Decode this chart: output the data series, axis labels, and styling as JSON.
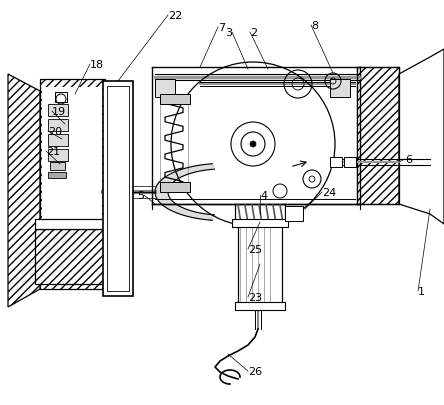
{
  "bg_color": "#ffffff",
  "line_color": "#000000",
  "figsize": [
    4.44,
    4.06
  ],
  "dpi": 100,
  "labels": [
    [
      "1",
      415,
      295,
      "left"
    ],
    [
      "2",
      248,
      35,
      "left"
    ],
    [
      "3",
      232,
      35,
      "left"
    ],
    [
      "4",
      258,
      195,
      "left"
    ],
    [
      "5",
      148,
      195,
      "right"
    ],
    [
      "6",
      402,
      163,
      "left"
    ],
    [
      "7",
      218,
      30,
      "left"
    ],
    [
      "8",
      310,
      28,
      "left"
    ],
    [
      "18",
      90,
      68,
      "left"
    ],
    [
      "19",
      55,
      118,
      "left"
    ],
    [
      "20",
      50,
      138,
      "left"
    ],
    [
      "21",
      48,
      155,
      "left"
    ],
    [
      "22",
      168,
      18,
      "left"
    ],
    [
      "23",
      248,
      300,
      "left"
    ],
    [
      "24",
      320,
      196,
      "left"
    ],
    [
      "25",
      248,
      252,
      "left"
    ],
    [
      "26",
      248,
      375,
      "left"
    ]
  ]
}
